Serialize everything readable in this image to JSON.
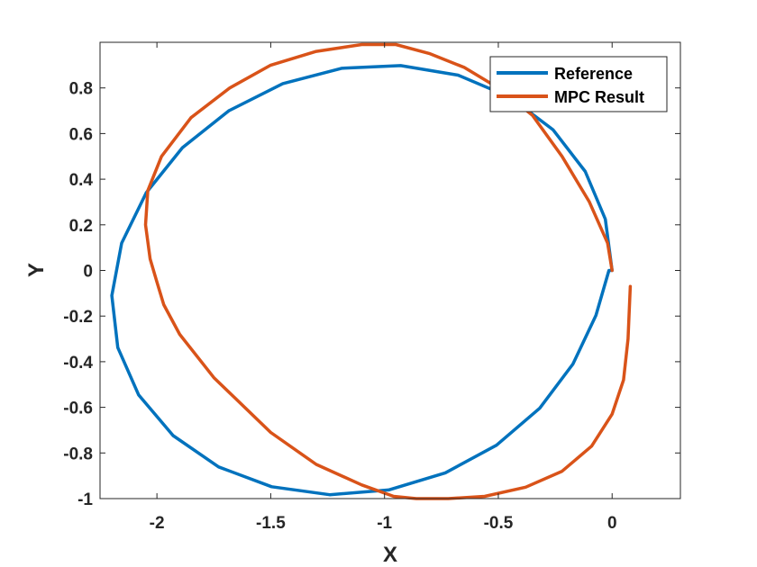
{
  "chart_data": {
    "type": "line",
    "title": "",
    "xlabel": "X",
    "ylabel": "Y",
    "xlim": [
      -2.25,
      0.3
    ],
    "ylim": [
      -1.0,
      1.0
    ],
    "grid": false,
    "legend_position": "top-right",
    "xticks": [
      -2,
      -1.5,
      -1,
      -0.5,
      0
    ],
    "xtick_labels": [
      "-2",
      "-1.5",
      "-1",
      "-0.5",
      "0"
    ],
    "yticks": [
      -1,
      -0.8,
      -0.6,
      -0.4,
      -0.2,
      0,
      0.2,
      0.4,
      0.6,
      0.8
    ],
    "ytick_labels": [
      "-1",
      "-0.8",
      "-0.6",
      "-0.4",
      "-0.2",
      "0",
      "0.2",
      "0.4",
      "0.6",
      "0.8"
    ],
    "series": [
      {
        "name": "Reference",
        "color": "#0072BD",
        "x": [
          0.0,
          -0.03,
          -0.118,
          -0.26,
          -0.45,
          -0.677,
          -0.929,
          -1.189,
          -1.447,
          -1.684,
          -1.888,
          -2.047,
          -2.155,
          -2.198,
          -2.172,
          -2.08,
          -1.929,
          -1.729,
          -1.496,
          -1.241,
          -0.982,
          -0.733,
          -0.508,
          -0.318,
          -0.172,
          -0.071,
          -0.014,
          0.0
        ],
        "y": [
          0.0,
          0.225,
          0.434,
          0.617,
          0.76,
          0.856,
          0.898,
          0.886,
          0.819,
          0.7,
          0.538,
          0.341,
          0.12,
          -0.11,
          -0.338,
          -0.546,
          -0.724,
          -0.861,
          -0.948,
          -0.983,
          -0.962,
          -0.887,
          -0.766,
          -0.604,
          -0.41,
          -0.197,
          0.0,
          0.0
        ]
      },
      {
        "name": "MPC Result",
        "color": "#D95319",
        "x": [
          0.08,
          0.07,
          0.05,
          0.0,
          -0.09,
          -0.22,
          -0.38,
          -0.56,
          -0.72,
          -0.86,
          -0.96,
          -1.1,
          -1.3,
          -1.5,
          -1.75,
          -1.9,
          -1.97,
          -2.0,
          -2.03,
          -2.05,
          -2.04,
          -1.98,
          -1.85,
          -1.68,
          -1.5,
          -1.3,
          -1.1,
          -0.95,
          -0.8,
          -0.65,
          -0.5,
          -0.35,
          -0.22,
          -0.1,
          -0.02,
          0.0
        ],
        "y": [
          -0.07,
          -0.3,
          -0.48,
          -0.63,
          -0.77,
          -0.88,
          -0.95,
          -0.99,
          -1.0,
          -1.0,
          -0.99,
          -0.94,
          -0.85,
          -0.71,
          -0.47,
          -0.28,
          -0.15,
          -0.05,
          0.05,
          0.2,
          0.35,
          0.5,
          0.67,
          0.8,
          0.9,
          0.96,
          0.99,
          0.99,
          0.95,
          0.89,
          0.8,
          0.68,
          0.5,
          0.3,
          0.12,
          0.0
        ]
      }
    ]
  }
}
